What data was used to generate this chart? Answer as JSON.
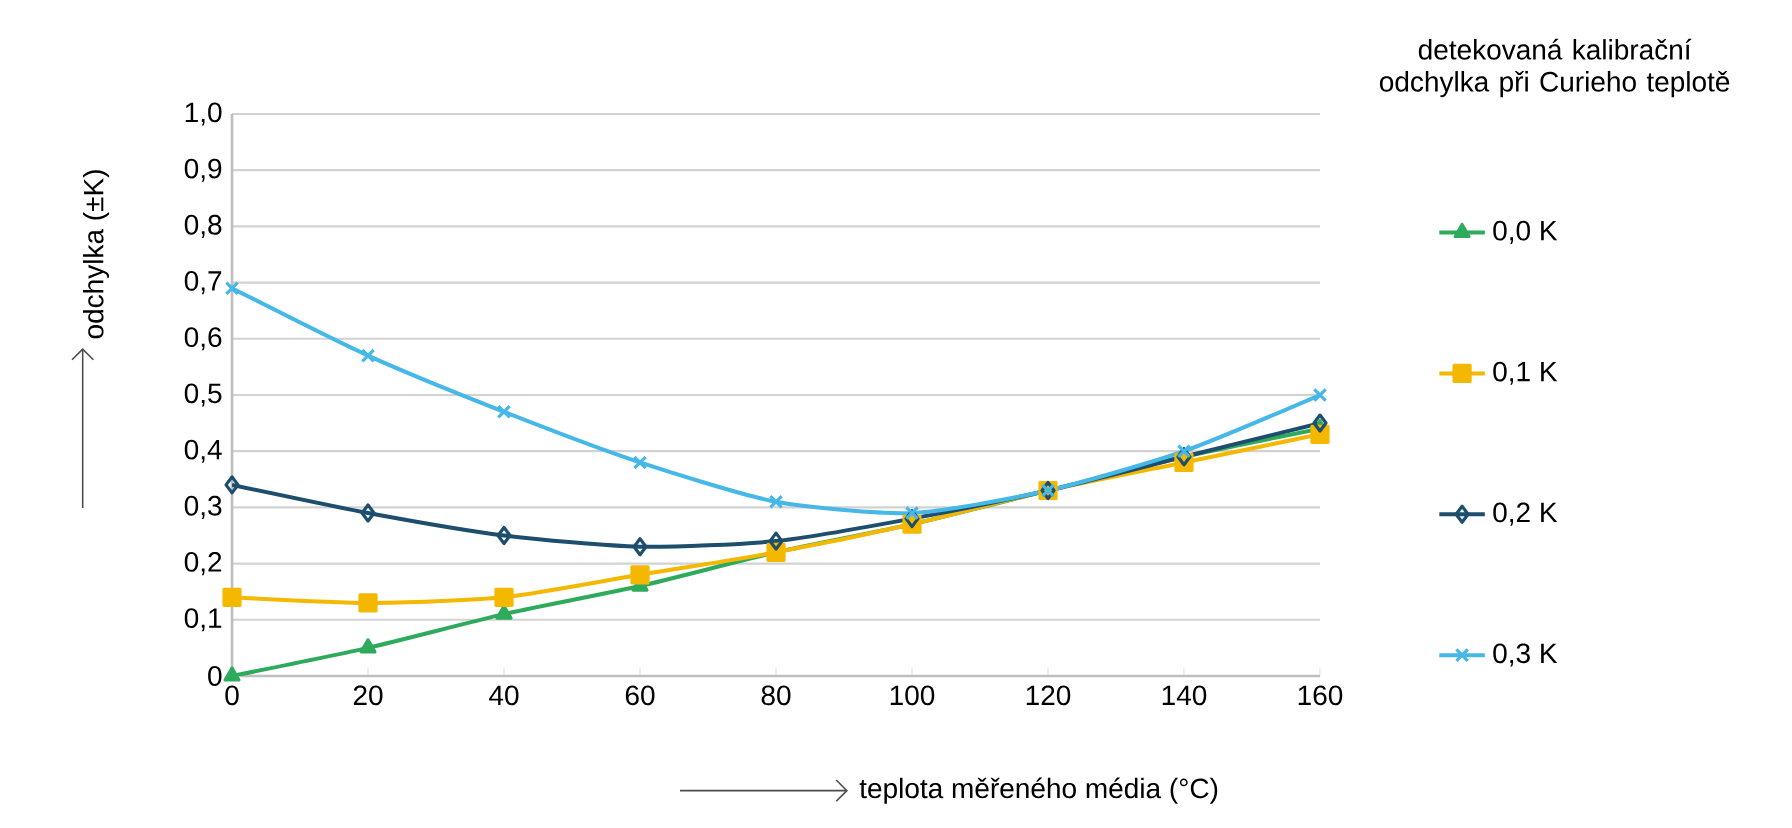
{
  "chart_data": {
    "type": "line",
    "xlabel": "teplota měřeného média (°C)",
    "ylabel": "odchylka (±K)",
    "legend_title": "detekovaná kalibrační odchylka při Curieho teplotě",
    "x": [
      0,
      20,
      40,
      60,
      80,
      100,
      120,
      140,
      160
    ],
    "series": [
      {
        "name": "0,0 K",
        "color": "#2eaa5c",
        "marker": "triangle",
        "values": [
          0,
          0.05,
          0.11,
          0.16,
          0.22,
          0.27,
          0.33,
          0.39,
          0.44
        ]
      },
      {
        "name": "0,1 K",
        "color": "#f5b800",
        "marker": "square",
        "values": [
          0.14,
          0.13,
          0.14,
          0.18,
          0.22,
          0.27,
          0.33,
          0.38,
          0.43
        ]
      },
      {
        "name": "0,2 K",
        "color": "#1d4e6e",
        "marker": "diamond",
        "values": [
          0.34,
          0.29,
          0.25,
          0.23,
          0.24,
          0.28,
          0.33,
          0.39,
          0.45
        ]
      },
      {
        "name": "0,3 K",
        "color": "#45b8e8",
        "marker": "cross",
        "values": [
          0.69,
          0.57,
          0.47,
          0.38,
          0.31,
          0.29,
          0.33,
          0.4,
          0.5
        ]
      }
    ],
    "xlim": [
      0,
      160
    ],
    "xticks": [
      0,
      20,
      40,
      60,
      80,
      100,
      120,
      140,
      160
    ],
    "ylim": [
      0,
      1.0
    ],
    "yticks": [
      0,
      {
        "value": 0.1,
        "label": "0,1"
      },
      {
        "value": 0.2,
        "label": "0,2"
      },
      {
        "value": 0.3,
        "label": "0,3"
      },
      {
        "value": 0.4,
        "label": "0,4"
      },
      {
        "value": 0.5,
        "label": "0,5"
      },
      {
        "value": 0.6,
        "label": "0,6"
      },
      {
        "value": 0.7,
        "label": "0,7"
      },
      {
        "value": 0.8,
        "label": "0,8"
      },
      {
        "value": 0.9,
        "label": "0,9"
      },
      {
        "value": 1.0,
        "label": "1,0"
      }
    ],
    "grid": "y",
    "legend": "right",
    "line_style": "solid"
  }
}
